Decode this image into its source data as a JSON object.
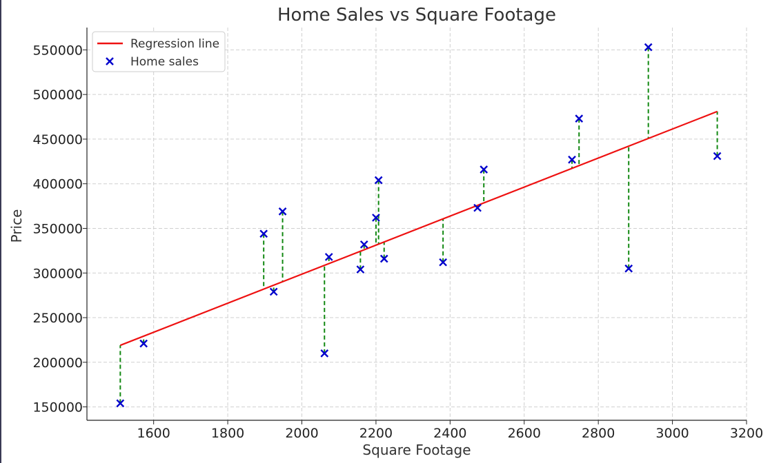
{
  "chart_data": {
    "type": "scatter",
    "title": "Home Sales vs Square Footage",
    "xlabel": "Square Footage",
    "ylabel": "Price",
    "xlim": [
      1420,
      3200
    ],
    "ylim": [
      135000,
      575000
    ],
    "xticks": [
      1600,
      1800,
      2000,
      2200,
      2400,
      2600,
      2800,
      3000,
      3200
    ],
    "yticks": [
      150000,
      200000,
      250000,
      300000,
      350000,
      400000,
      450000,
      500000,
      550000
    ],
    "xtick_labels": [
      "1600",
      "1800",
      "2000",
      "2200",
      "2400",
      "2600",
      "2800",
      "3000",
      "3200"
    ],
    "ytick_labels": [
      "150000",
      "200000",
      "250000",
      "300000",
      "350000",
      "400000",
      "450000",
      "500000",
      "550000"
    ],
    "grid": true,
    "legend_position": "top-left",
    "series": [
      {
        "name": "Home sales",
        "kind": "scatter",
        "marker": "x",
        "color": "#0000cc",
        "points": [
          [
            1510,
            154000
          ],
          [
            1573,
            221000
          ],
          [
            1897,
            344000
          ],
          [
            1924,
            279000
          ],
          [
            1948,
            369000
          ],
          [
            2061,
            210000
          ],
          [
            2073,
            318000
          ],
          [
            2158,
            304000
          ],
          [
            2168,
            332000
          ],
          [
            2200,
            362000
          ],
          [
            2207,
            404000
          ],
          [
            2222,
            316000
          ],
          [
            2381,
            312000
          ],
          [
            2474,
            373000
          ],
          [
            2491,
            416000
          ],
          [
            2729,
            427000
          ],
          [
            2748,
            473000
          ],
          [
            2882,
            305000
          ],
          [
            2935,
            553000
          ],
          [
            3121,
            431000
          ]
        ]
      },
      {
        "name": "Regression line",
        "kind": "line",
        "color": "#ee1111",
        "x": [
          1510,
          3121
        ],
        "y": [
          219000,
          481000
        ]
      }
    ],
    "residuals": {
      "style": "dashed",
      "color": "#118811"
    }
  }
}
